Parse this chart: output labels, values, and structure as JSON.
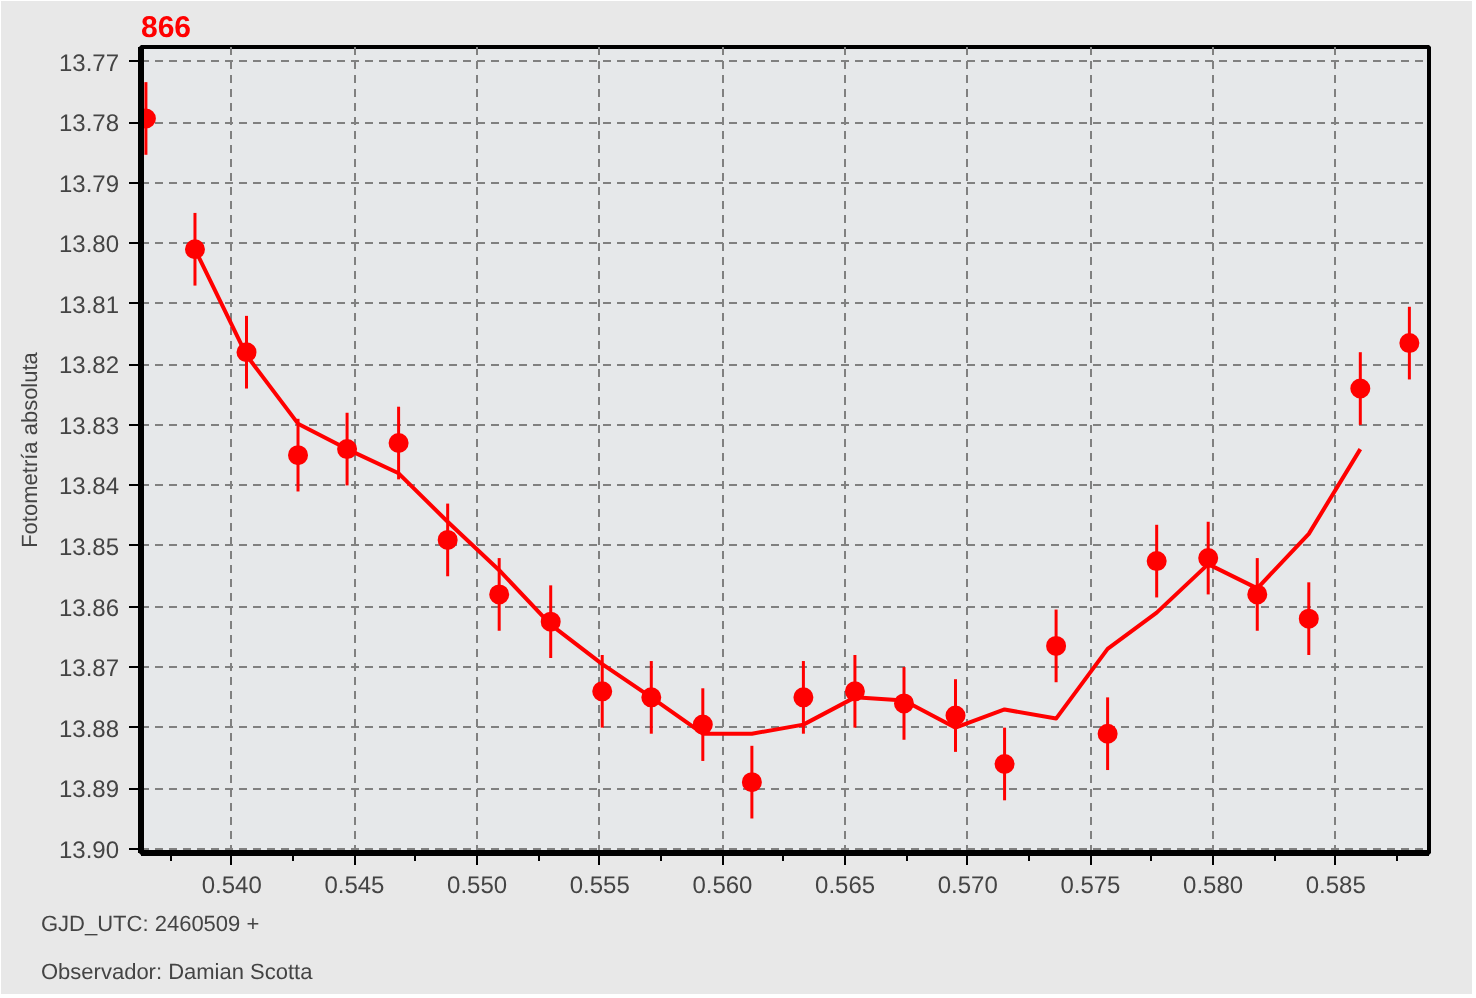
{
  "chart_data": {
    "type": "scatter",
    "title": "866",
    "ylabel": "Fotometría absoluta",
    "annotations": [
      "GJD_UTC: 2460509 +",
      "Observador: Damian Scotta"
    ],
    "xlim": [
      0.5363,
      0.5888
    ],
    "xticks": [
      {
        "value": 0.54,
        "label": "0.540"
      },
      {
        "value": 0.545,
        "label": "0.545"
      },
      {
        "value": 0.55,
        "label": "0.550"
      },
      {
        "value": 0.555,
        "label": "0.555"
      },
      {
        "value": 0.56,
        "label": "0.560"
      },
      {
        "value": 0.565,
        "label": "0.565"
      },
      {
        "value": 0.57,
        "label": "0.570"
      },
      {
        "value": 0.575,
        "label": "0.575"
      },
      {
        "value": 0.58,
        "label": "0.580"
      },
      {
        "value": 0.585,
        "label": "0.585"
      }
    ],
    "ylim": [
      13.9007,
      13.7676
    ],
    "yticks": [
      13.77,
      13.78,
      13.79,
      {
        "value": 13.8,
        "label": "13.80"
      },
      13.81,
      13.82,
      13.83,
      13.84,
      13.85,
      13.86,
      13.87,
      13.88,
      13.89,
      {
        "value": 13.9,
        "label": "13.90"
      }
    ],
    "grid": true,
    "series": [
      {
        "marker": "circle",
        "color": "#ff0000",
        "x": [
          0.5365,
          0.5385,
          0.5406,
          0.5427,
          0.5447,
          0.5468,
          0.5488,
          0.5509,
          0.553,
          0.5551,
          0.5571,
          0.5592,
          0.5612,
          0.5633,
          0.5654,
          0.5674,
          0.5695,
          0.5715,
          0.5736,
          0.5757,
          0.5777,
          0.5798,
          0.5818,
          0.5839,
          0.586,
          0.588
        ],
        "values": [
          13.7794,
          13.801,
          13.818,
          13.835,
          13.834,
          13.833,
          13.849,
          13.858,
          13.8625,
          13.874,
          13.875,
          13.8795,
          13.889,
          13.875,
          13.874,
          13.876,
          13.878,
          13.886,
          13.8665,
          13.881,
          13.8525,
          13.852,
          13.858,
          13.862,
          13.824,
          13.8165
        ],
        "errors": [
          0.006,
          0.006,
          0.006,
          0.006,
          0.006,
          0.006,
          0.006,
          0.006,
          0.006,
          0.006,
          0.006,
          0.006,
          0.006,
          0.006,
          0.006,
          0.006,
          0.006,
          0.006,
          0.006,
          0.006,
          0.006,
          0.006,
          0.006,
          0.006,
          0.006,
          0.006
        ]
      },
      {
        "type": "line",
        "color": "#ff0000",
        "line_style": "solid",
        "marker": "none",
        "x": [
          0.5385,
          0.5406,
          0.5427,
          0.5447,
          0.5468,
          0.5488,
          0.5509,
          0.553,
          0.5551,
          0.5571,
          0.5592,
          0.5612,
          0.5633,
          0.5654,
          0.5674,
          0.5695,
          0.5715,
          0.5736,
          0.5757,
          0.5777,
          0.5798,
          0.5818,
          0.5839,
          0.586
        ],
        "values": [
          13.801,
          13.8185,
          13.8298,
          13.834,
          13.838,
          13.846,
          13.854,
          13.863,
          13.8695,
          13.875,
          13.881,
          13.881,
          13.8795,
          13.875,
          13.8755,
          13.88,
          13.877,
          13.8785,
          13.867,
          13.861,
          13.853,
          13.857,
          13.848,
          13.834
        ]
      }
    ]
  }
}
